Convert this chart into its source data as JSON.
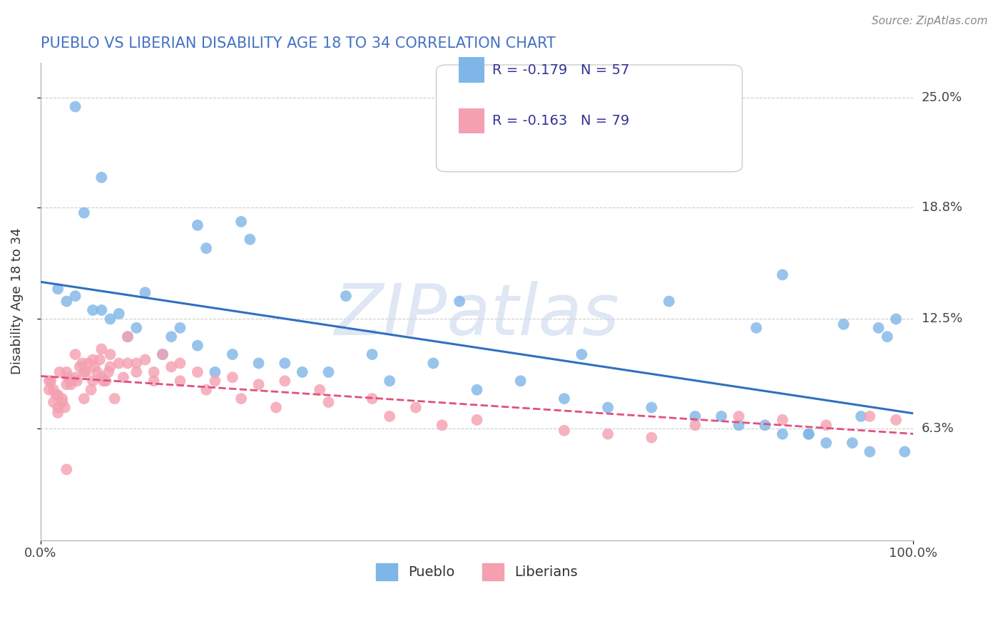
{
  "title": "PUEBLO VS LIBERIAN DISABILITY AGE 18 TO 34 CORRELATION CHART",
  "source_text": "Source: ZipAtlas.com",
  "ylabel": "Disability Age 18 to 34",
  "xlim": [
    0,
    100
  ],
  "ylim": [
    0,
    27
  ],
  "xtick_labels": [
    "0.0%",
    "100.0%"
  ],
  "xtick_positions": [
    0,
    100
  ],
  "ytick_labels": [
    "6.3%",
    "12.5%",
    "18.8%",
    "25.0%"
  ],
  "ytick_positions": [
    6.3,
    12.5,
    18.8,
    25.0
  ],
  "pueblo_R": -0.179,
  "pueblo_N": 57,
  "liberian_R": -0.163,
  "liberian_N": 79,
  "pueblo_color": "#7EB6E8",
  "liberian_color": "#F4A0B0",
  "pueblo_line_color": "#3070C0",
  "liberian_line_color": "#E05080",
  "legend_label_pueblo": "Pueblo",
  "legend_label_liberian": "Liberians",
  "watermark": "ZIPatlas",
  "background_color": "#FFFFFF",
  "pueblo_scatter_x": [
    4,
    7,
    5,
    18,
    24,
    19,
    23,
    35,
    48,
    62,
    72,
    82,
    85,
    88,
    92,
    94,
    96,
    97,
    98,
    3,
    6,
    8,
    10,
    12,
    14,
    16,
    20,
    25,
    30,
    38,
    45,
    55,
    65,
    75,
    80,
    85,
    90,
    95,
    2,
    4,
    7,
    9,
    11,
    15,
    18,
    22,
    28,
    33,
    40,
    50,
    60,
    70,
    78,
    83,
    88,
    93,
    99
  ],
  "pueblo_scatter_y": [
    24.5,
    20.5,
    18.5,
    17.8,
    17.0,
    16.5,
    18.0,
    13.8,
    13.5,
    10.5,
    13.5,
    12.0,
    15.0,
    6.0,
    12.2,
    7.0,
    12.0,
    11.5,
    12.5,
    13.5,
    13.0,
    12.5,
    11.5,
    14.0,
    10.5,
    12.0,
    9.5,
    10.0,
    9.5,
    10.5,
    10.0,
    9.0,
    7.5,
    7.0,
    6.5,
    6.0,
    5.5,
    5.0,
    14.2,
    13.8,
    13.0,
    12.8,
    12.0,
    11.5,
    11.0,
    10.5,
    10.0,
    9.5,
    9.0,
    8.5,
    8.0,
    7.5,
    7.0,
    6.5,
    6.0,
    5.5,
    5.0
  ],
  "liberian_scatter_x": [
    1,
    1.5,
    2,
    2,
    2.5,
    3,
    3,
    3.5,
    4,
    4,
    4.5,
    5,
    5,
    5.5,
    6,
    6,
    6.5,
    7,
    7,
    7.5,
    8,
    8,
    9,
    10,
    10,
    11,
    12,
    13,
    14,
    15,
    16,
    18,
    20,
    22,
    25,
    28,
    32,
    38,
    43,
    1,
    1.2,
    1.5,
    1.8,
    2.2,
    2.5,
    2.8,
    3.2,
    3.5,
    4.2,
    4.8,
    5.2,
    5.8,
    6.2,
    6.8,
    7.2,
    7.8,
    8.5,
    9.5,
    11,
    13,
    16,
    19,
    23,
    27,
    33,
    40,
    46,
    50,
    60,
    65,
    70,
    75,
    80,
    85,
    90,
    95,
    98,
    2,
    3
  ],
  "liberian_scatter_y": [
    9.0,
    8.5,
    8.2,
    7.5,
    7.8,
    9.5,
    8.8,
    9.0,
    10.5,
    9.2,
    9.8,
    8.0,
    9.5,
    10.0,
    10.2,
    9.0,
    9.5,
    10.8,
    9.2,
    9.0,
    10.5,
    9.8,
    10.0,
    11.5,
    10.0,
    9.5,
    10.2,
    9.0,
    10.5,
    9.8,
    10.0,
    9.5,
    9.0,
    9.2,
    8.8,
    9.0,
    8.5,
    8.0,
    7.5,
    8.5,
    9.0,
    7.8,
    8.2,
    9.5,
    8.0,
    7.5,
    9.2,
    8.8,
    9.0,
    10.0,
    9.5,
    8.5,
    9.8,
    10.2,
    9.0,
    9.5,
    8.0,
    9.2,
    10.0,
    9.5,
    9.0,
    8.5,
    8.0,
    7.5,
    7.8,
    7.0,
    6.5,
    6.8,
    6.2,
    6.0,
    5.8,
    6.5,
    7.0,
    6.8,
    6.5,
    7.0,
    6.8,
    7.2,
    4.0
  ]
}
